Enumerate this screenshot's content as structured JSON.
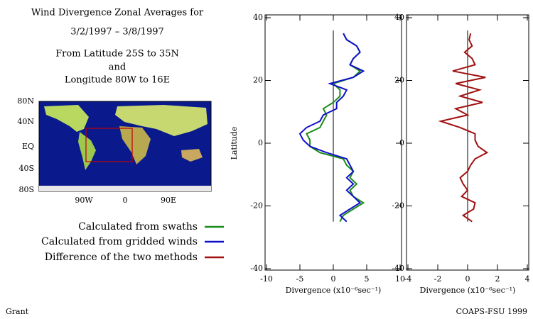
{
  "title": "Wind Divergence Zonal Averages for",
  "dates": "3/2/1997 – 3/8/1997",
  "region": [
    "From Latitude 25S to 35N",
    "and",
    "Longitude 80W to 16E"
  ],
  "map": {
    "ylabels": [
      "80N",
      "40N",
      "EQ",
      "40S",
      "80S"
    ],
    "xlabels": [
      "90W",
      "0",
      "90E"
    ]
  },
  "footer_left": "Grant",
  "footer_right": "COAPS-FSU 1999",
  "chart_data": [
    {
      "type": "line",
      "xlabel": "Divergence (x10⁻⁶sec⁻¹)",
      "ylabel": "Latitude",
      "xlim": [
        -10,
        10
      ],
      "xticks": [
        -10,
        -5,
        0,
        5,
        10
      ],
      "ylim": [
        -40,
        40
      ],
      "yticks": [
        -40,
        -20,
        0,
        20,
        40
      ],
      "y": [
        -25,
        -23,
        -21,
        -19,
        -17,
        -15,
        -13,
        -11,
        -9,
        -7,
        -5,
        -3,
        -1,
        1,
        3,
        5,
        7,
        9,
        11,
        13,
        15,
        17,
        19,
        21,
        23,
        25,
        27,
        29,
        31,
        33,
        35
      ],
      "series": [
        {
          "name": "Calculated from swaths",
          "color": "#1a8c1a",
          "values": [
            1,
            1.5,
            3,
            4.5,
            3,
            2.5,
            3.5,
            2.5,
            3,
            2,
            1.5,
            -2,
            -3.5,
            -3.5,
            -4,
            -2,
            -1.5,
            -1,
            -1.5,
            0,
            1,
            1,
            0,
            3,
            4,
            2.5,
            3,
            4,
            3.5,
            2,
            1.5
          ]
        },
        {
          "name": "Calculated from gridded winds",
          "color": "#1010c8",
          "values": [
            2,
            1,
            2.5,
            4,
            3,
            2,
            3,
            2,
            3,
            2.5,
            2,
            -1,
            -3.5,
            -4.5,
            -5,
            -4,
            -2,
            -1.5,
            0.5,
            0.5,
            1.5,
            2,
            -0.5,
            3,
            4.5,
            2.5,
            3,
            4,
            3.5,
            2,
            1.5
          ]
        }
      ]
    },
    {
      "type": "line",
      "xlabel": "Divergence (x10⁻⁶sec⁻¹)",
      "xlim": [
        -4,
        4
      ],
      "xticks": [
        -4,
        -2,
        0,
        2,
        4
      ],
      "ylim": [
        -40,
        40
      ],
      "yticks": [
        -40,
        -20,
        0,
        20,
        40
      ],
      "y": [
        -25,
        -23,
        -21,
        -19,
        -17,
        -15,
        -13,
        -11,
        -9,
        -7,
        -5,
        -3,
        -1,
        1,
        3,
        5,
        7,
        9,
        11,
        13,
        15,
        17,
        19,
        21,
        23,
        25,
        27,
        29,
        31,
        33,
        35
      ],
      "series": [
        {
          "name": "Difference of the two methods",
          "color": "#a01010",
          "values": [
            0.3,
            -0.3,
            0.4,
            0.5,
            -0.4,
            0,
            -0.3,
            -0.5,
            0,
            0.2,
            0.5,
            1.3,
            0.7,
            0.5,
            0.5,
            -0.5,
            -1.8,
            0,
            -0.8,
            1,
            -0.5,
            0.8,
            -0.8,
            1.2,
            -1,
            0.5,
            0.3,
            -0.2,
            0.3,
            0.1,
            0.2
          ]
        }
      ]
    }
  ]
}
